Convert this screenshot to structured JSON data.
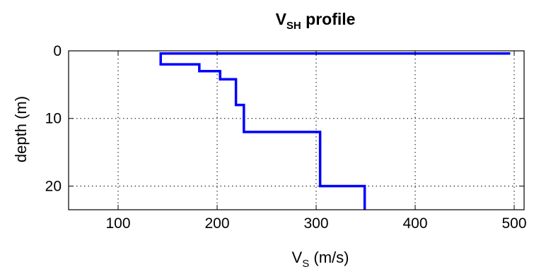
{
  "chart_data": {
    "type": "line",
    "title": {
      "main": "V",
      "sub": "SH",
      "rest": " profile"
    },
    "xlabel": {
      "main": "V",
      "sub": "S",
      "rest": " (m/s)"
    },
    "ylabel": "depth (m)",
    "xlim": [
      50,
      510
    ],
    "ylim": [
      0,
      23.5
    ],
    "y_reversed": true,
    "grid": true,
    "xticks": [
      100,
      200,
      300,
      400,
      500
    ],
    "xtick_labels": [
      "100",
      "200",
      "300",
      "400",
      "500"
    ],
    "yticks": [
      0,
      10,
      20
    ],
    "ytick_labels": [
      "0",
      "10",
      "20"
    ],
    "series": [
      {
        "color": "#0000ff",
        "x": [
          496,
          143,
          143,
          182,
          182,
          203,
          203,
          219,
          219,
          227,
          227,
          304,
          304,
          349,
          349
        ],
        "y": [
          0.4,
          0.4,
          2,
          2,
          3,
          3,
          4.2,
          4.2,
          8,
          8,
          12,
          12,
          20,
          20,
          23.5
        ]
      }
    ]
  }
}
